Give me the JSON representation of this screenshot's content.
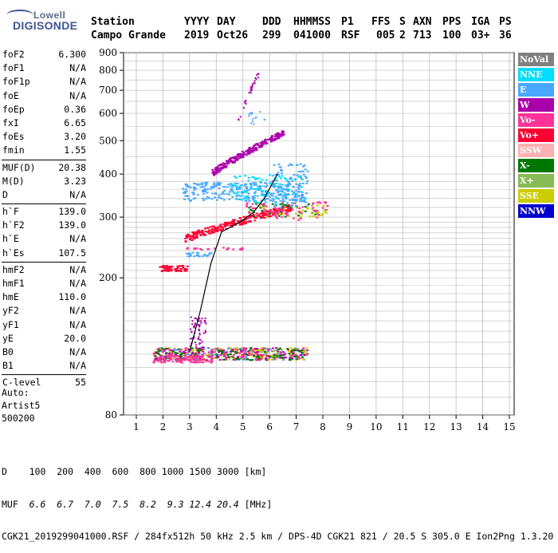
{
  "logo": {
    "line1": "Lowell",
    "line2": "DIGISONDE"
  },
  "header": {
    "labels": [
      "Station",
      "YYYY",
      "DAY",
      "DDD",
      "HHMMSS",
      "P1",
      "FFS",
      "S",
      "AXN",
      "PPS",
      "IGA",
      "PS"
    ],
    "values": [
      "Campo Grande",
      "2019",
      "Oct26",
      "299",
      "041000",
      "RSF",
      "005",
      "2",
      "713",
      "100",
      "03+",
      "36"
    ]
  },
  "params": [
    {
      "k": "foF2",
      "v": "6.300"
    },
    {
      "k": "foF1",
      "v": "N/A"
    },
    {
      "k": "foF1p",
      "v": "N/A"
    },
    {
      "k": "foE",
      "v": "N/A"
    },
    {
      "k": "foEp",
      "v": "0.36"
    },
    {
      "k": "fxI",
      "v": "6.65"
    },
    {
      "k": "foEs",
      "v": "3.20"
    },
    {
      "k": "fmin",
      "v": "1.55"
    },
    {
      "sep": true
    },
    {
      "k": "MUF(D)",
      "v": "20.38"
    },
    {
      "k": "M(D)",
      "v": "3.23"
    },
    {
      "k": "D",
      "v": "N/A"
    },
    {
      "sep": true
    },
    {
      "k": "h`F",
      "v": "139.0"
    },
    {
      "k": "h`F2",
      "v": "139.0"
    },
    {
      "k": "h`E",
      "v": "N/A"
    },
    {
      "k": "h`Es",
      "v": "107.5"
    },
    {
      "sep": true
    },
    {
      "k": "hmF2",
      "v": "N/A"
    },
    {
      "k": "hmF1",
      "v": "N/A"
    },
    {
      "k": "hmE",
      "v": "110.0"
    },
    {
      "k": "yF2",
      "v": "N/A"
    },
    {
      "k": "yF1",
      "v": "N/A"
    },
    {
      "k": "yE",
      "v": "20.0"
    },
    {
      "k": "B0",
      "v": "N/A"
    },
    {
      "k": "B1",
      "v": "N/A"
    },
    {
      "sep": true
    },
    {
      "k": "C-level",
      "v": "55"
    }
  ],
  "auto": [
    "Auto:",
    "Artist5",
    "500200"
  ],
  "legend": [
    {
      "label": "NoVal",
      "color": "#808080"
    },
    {
      "label": "NNE",
      "color": "#00ddff"
    },
    {
      "label": "E",
      "color": "#48a8ff"
    },
    {
      "label": "W",
      "color": "#aa00aa"
    },
    {
      "label": "Vo-",
      "color": "#ff3399"
    },
    {
      "label": "Vo+",
      "color": "#ff0033"
    },
    {
      "label": "SSW",
      "color": "#ffb0b0"
    },
    {
      "label": "X-",
      "color": "#007700"
    },
    {
      "label": "X+",
      "color": "#88bb55"
    },
    {
      "label": "SSE",
      "color": "#cccc00"
    },
    {
      "label": "NNW",
      "color": "#0000cc"
    }
  ],
  "bottom": {
    "d_row": "D    100  200  400  600  800 1000 1500 3000 [km]",
    "muf_label": "MUF",
    "muf_values": "  6.6  6.7  7.0  7.5  8.2  9.3 12.4 20.4",
    "muf_unit": " [MHz]",
    "footer": "CGK21_2019299041000.RSF / 284fx512h 50 kHz 2.5 km / DPS-4D CGK21 821 / 20.5 S 305.0 E Ion2Png 1.3.20"
  },
  "chart_data": {
    "type": "scatter",
    "xlabel": "",
    "ylabel": "",
    "xlim": [
      1,
      15
    ],
    "ylim": [
      80,
      900
    ],
    "yscale": "log",
    "xticks": [
      1,
      2,
      3,
      4,
      5,
      6,
      7,
      8,
      9,
      10,
      11,
      12,
      13,
      14,
      15
    ],
    "yticks": [
      80,
      200,
      300,
      400,
      500,
      600,
      700,
      800,
      900
    ],
    "grid": true,
    "traces": [
      {
        "name": "Es low-layer echo",
        "color": "#ff0033",
        "x_range": [
          1.6,
          7.4
        ],
        "y": 120
      },
      {
        "name": "Es second hop",
        "color": "#ff0033",
        "x_range": [
          1.8,
          2.9
        ],
        "y": 214
      },
      {
        "name": "O-mode F trace",
        "color": "#ff0033",
        "x_range": [
          2.8,
          6.8
        ],
        "y_range": [
          260,
          320
        ]
      },
      {
        "name": "E-direction echo",
        "color": "#48a8ff",
        "x_range": [
          2.7,
          7.3
        ],
        "y_range": [
          340,
          375
        ]
      },
      {
        "name": "W-direction echo",
        "color": "#aa00aa",
        "x_range": [
          3.8,
          6.5
        ],
        "y_range": [
          405,
          520
        ]
      },
      {
        "name": "Sparse W echo",
        "color": "#aa00aa",
        "x_range": [
          4.8,
          5.6
        ],
        "y_range": [
          560,
          780
        ]
      }
    ],
    "profile_curve": {
      "x": [
        3.0,
        3.4,
        3.8,
        4.2,
        4.6,
        5.0,
        5.4,
        5.8,
        6.1,
        6.3
      ],
      "y": [
        122,
        160,
        220,
        272,
        282,
        294,
        310,
        340,
        375,
        400
      ]
    }
  }
}
